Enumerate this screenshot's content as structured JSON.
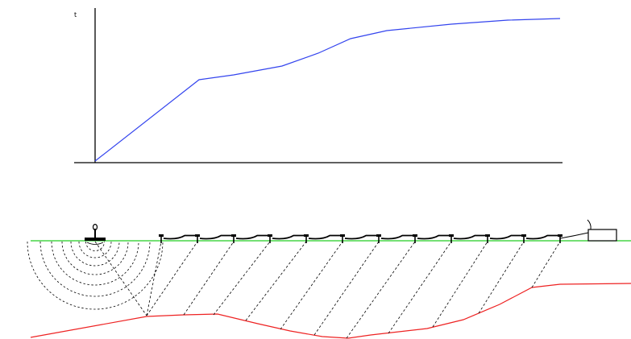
{
  "time_axis_label": "t",
  "colors": {
    "traveltime_curve": "#3344ee",
    "ground_surface": "#22cc22",
    "refractor": "#ee2222",
    "ink": "#000000"
  },
  "icons": {
    "source": "seismic-source-icon",
    "geophone": "geophone-icon",
    "recorder": "seismograph-recorder-icon"
  },
  "geophone_count": 12
}
